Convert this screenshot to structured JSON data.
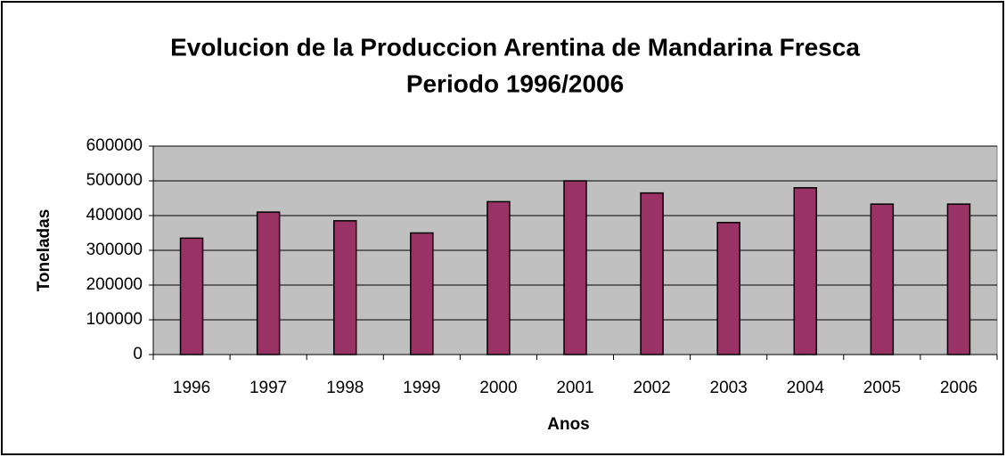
{
  "chart_data": {
    "type": "bar",
    "title": "Evolucion de la Produccion Arentina de Mandarina Fresca",
    "subtitle": "Periodo 1996/2006",
    "x_label": "Anos",
    "y_label": "Toneladas",
    "categories": [
      "1996",
      "1997",
      "1998",
      "1999",
      "2000",
      "2001",
      "2002",
      "2003",
      "2004",
      "2005",
      "2006"
    ],
    "values": [
      335000,
      410000,
      385000,
      350000,
      440000,
      500000,
      465000,
      380000,
      480000,
      433000,
      433000
    ],
    "color": "#993366",
    "ylim": [
      0,
      600000
    ],
    "yticks": [
      0,
      100000,
      200000,
      300000,
      400000,
      500000,
      600000
    ],
    "grid": true
  }
}
